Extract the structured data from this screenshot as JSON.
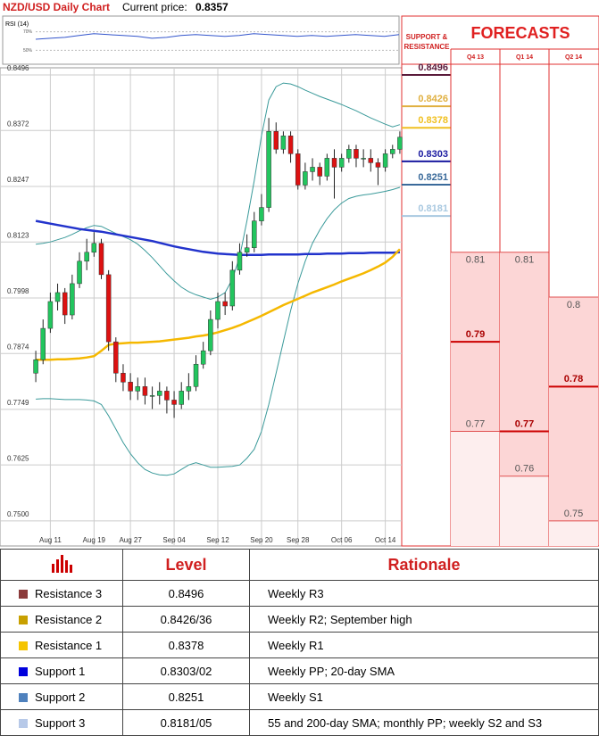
{
  "header": {
    "title": "NZD/USD Daily Chart",
    "price_label": "Current price:",
    "price": 0.8357
  },
  "chart_data": {
    "type": "candlestick",
    "categories": [
      null,
      null,
      "Aug 11",
      null,
      null,
      null,
      null,
      null,
      "Aug 19",
      null,
      null,
      null,
      null,
      "Aug 27",
      null,
      null,
      null,
      null,
      null,
      "Sep 04",
      null,
      null,
      null,
      null,
      null,
      "Sep 12",
      null,
      null,
      null,
      null,
      null,
      "Sep 20",
      null,
      null,
      null,
      null,
      "Sep 28",
      null,
      null,
      null,
      null,
      null,
      "Oct 06",
      null,
      null,
      null,
      null,
      null,
      "Oct 14",
      null,
      null
    ],
    "open": [
      0.783,
      0.786,
      0.793,
      0.799,
      0.801,
      0.796,
      0.803,
      0.808,
      0.81,
      0.812,
      0.805,
      0.79,
      0.783,
      0.781,
      0.779,
      0.78,
      0.778,
      0.778,
      0.779,
      0.777,
      0.776,
      0.779,
      0.78,
      0.785,
      0.788,
      0.795,
      0.799,
      0.798,
      0.806,
      0.81,
      0.811,
      0.817,
      0.82,
      0.837,
      0.833,
      0.836,
      0.832,
      0.825,
      0.828,
      0.829,
      0.827,
      0.831,
      0.829,
      0.831,
      0.833,
      0.831,
      0.831,
      0.83,
      0.829,
      0.832,
      0.833
    ],
    "high": [
      0.788,
      0.795,
      0.801,
      0.803,
      0.802,
      0.805,
      0.81,
      0.813,
      0.8145,
      0.813,
      0.806,
      0.791,
      0.785,
      0.783,
      0.782,
      0.782,
      0.78,
      0.781,
      0.78,
      0.779,
      0.781,
      0.783,
      0.787,
      0.79,
      0.797,
      0.801,
      0.801,
      0.808,
      0.812,
      0.814,
      0.819,
      0.823,
      0.84,
      0.839,
      0.837,
      0.837,
      0.833,
      0.83,
      0.831,
      0.83,
      0.832,
      0.833,
      0.832,
      0.834,
      0.834,
      0.833,
      0.833,
      0.831,
      0.833,
      0.834,
      0.837
    ],
    "low": [
      0.781,
      0.785,
      0.792,
      0.797,
      0.794,
      0.795,
      0.802,
      0.806,
      0.809,
      0.804,
      0.788,
      0.781,
      0.779,
      0.777,
      0.777,
      0.776,
      0.775,
      0.776,
      0.774,
      0.773,
      0.775,
      0.777,
      0.779,
      0.784,
      0.787,
      0.793,
      0.796,
      0.797,
      0.805,
      0.809,
      0.81,
      0.816,
      0.819,
      0.832,
      0.832,
      0.83,
      0.824,
      0.824,
      0.826,
      0.825,
      0.826,
      0.822,
      0.828,
      0.83,
      0.829,
      0.829,
      0.828,
      0.825,
      0.828,
      0.831,
      0.832
    ],
    "close": [
      0.786,
      0.793,
      0.799,
      0.801,
      0.796,
      0.803,
      0.808,
      0.81,
      0.812,
      0.805,
      0.79,
      0.783,
      0.781,
      0.779,
      0.78,
      0.778,
      0.778,
      0.779,
      0.777,
      0.776,
      0.779,
      0.78,
      0.785,
      0.788,
      0.795,
      0.799,
      0.798,
      0.806,
      0.81,
      0.811,
      0.817,
      0.82,
      0.837,
      0.833,
      0.836,
      0.832,
      0.825,
      0.828,
      0.829,
      0.827,
      0.831,
      0.829,
      0.831,
      0.833,
      0.831,
      0.831,
      0.83,
      0.829,
      0.832,
      0.833,
      0.8357
    ],
    "series": [
      {
        "color": "#3a9a9a",
        "values": [
          0.8118,
          0.812,
          0.8123,
          0.8128,
          0.8133,
          0.814,
          0.8148,
          0.8155,
          0.816,
          0.8158,
          0.815,
          0.8142,
          0.8135,
          0.8128,
          0.8118,
          0.8104,
          0.8088,
          0.807,
          0.8052,
          0.8036,
          0.8022,
          0.8012,
          0.8005,
          0.8,
          0.7995,
          0.8,
          0.801,
          0.804,
          0.809,
          0.817,
          0.826,
          0.836,
          0.844,
          0.847,
          0.8478,
          0.8476,
          0.847,
          0.8462,
          0.8455,
          0.8448,
          0.8442,
          0.8436,
          0.843,
          0.8423,
          0.8416,
          0.8408,
          0.84,
          0.8393,
          0.8386,
          0.838,
          0.8385
        ]
      },
      {
        "color": "#3a9a9a",
        "values": [
          0.7772,
          0.7773,
          0.7773,
          0.7772,
          0.7771,
          0.7771,
          0.7771,
          0.777,
          0.7768,
          0.776,
          0.7735,
          0.7705,
          0.7675,
          0.765,
          0.763,
          0.7615,
          0.7607,
          0.7603,
          0.7602,
          0.7605,
          0.7615,
          0.7625,
          0.763,
          0.7625,
          0.762,
          0.762,
          0.7621,
          0.7622,
          0.7625,
          0.764,
          0.766,
          0.77,
          0.776,
          0.783,
          0.79,
          0.797,
          0.803,
          0.808,
          0.812,
          0.815,
          0.8175,
          0.8195,
          0.821,
          0.822,
          0.8225,
          0.8228,
          0.823,
          0.8233,
          0.8236,
          0.824,
          0.8245
        ]
      },
      {
        "color": "#2233cc",
        "values": [
          0.817,
          0.8167,
          0.8164,
          0.8161,
          0.8158,
          0.8155,
          0.8152,
          0.815,
          0.8148,
          0.8146,
          0.8143,
          0.814,
          0.8137,
          0.8134,
          0.8131,
          0.8128,
          0.8125,
          0.8121,
          0.8117,
          0.8113,
          0.811,
          0.8107,
          0.8104,
          0.8101,
          0.8099,
          0.8097,
          0.8096,
          0.8095,
          0.8094,
          0.8094,
          0.8094,
          0.8094,
          0.8095,
          0.8095,
          0.8095,
          0.8095,
          0.8095,
          0.8096,
          0.8096,
          0.8096,
          0.8097,
          0.8097,
          0.8097,
          0.8098,
          0.8098,
          0.8098,
          0.8099,
          0.8099,
          0.8099,
          0.8099,
          0.81
        ]
      },
      {
        "color": "#f5b800",
        "values": [
          0.786,
          0.786,
          0.786,
          0.7861,
          0.7861,
          0.7862,
          0.7863,
          0.7865,
          0.7868,
          0.788,
          0.7893,
          0.7896,
          0.7897,
          0.7898,
          0.7898,
          0.7899,
          0.79,
          0.7901,
          0.7903,
          0.7905,
          0.7907,
          0.7909,
          0.7912,
          0.7914,
          0.7917,
          0.7921,
          0.7926,
          0.7931,
          0.7937,
          0.7944,
          0.7951,
          0.7958,
          0.7966,
          0.7974,
          0.7982,
          0.7989,
          0.7996,
          0.8003,
          0.801,
          0.8016,
          0.8022,
          0.8028,
          0.8035,
          0.8041,
          0.8047,
          0.8053,
          0.806,
          0.8068,
          0.8077,
          0.809,
          0.8107
        ]
      }
    ],
    "up_color": "#22c55e",
    "down_color": "#dd1111",
    "ylim": [
      0.7444,
      0.8512
    ],
    "yticks": [
      0.8496,
      0.8372,
      0.8247,
      0.8123,
      0.7998,
      0.7874,
      0.7749,
      0.7625,
      {
        "value": 0.75,
        "label": "0.7500"
      }
    ],
    "grid": true,
    "rsi": {
      "title": "RSI (14)",
      "color": "#3355cc",
      "ylim": [
        35,
        87
      ],
      "yticks": [
        {
          "value": 70,
          "label": "70%"
        },
        {
          "value": 50,
          "label": "50%"
        }
      ],
      "values": [
        62,
        63,
        64,
        66,
        68,
        67,
        66,
        65,
        63,
        64,
        66,
        67,
        66,
        65,
        66,
        68,
        67,
        66,
        65,
        66,
        65,
        66,
        67,
        66,
        65,
        67
      ]
    }
  },
  "support_resistance": {
    "title": "SUPPORT & RESISTANCE",
    "levels": [
      {
        "value": 0.8496,
        "color": "#5a1a3a"
      },
      {
        "value": 0.8426,
        "color": "#e0b040"
      },
      {
        "value": 0.8378,
        "color": "#f0c020"
      },
      {
        "value": 0.8303,
        "color": "#1a1aa0"
      },
      {
        "value": 0.8251,
        "color": "#3a6a9a"
      },
      {
        "value": 0.8181,
        "color": "#a8c8e0"
      }
    ]
  },
  "forecasts": {
    "title": "FORECASTS",
    "periods": [
      {
        "label": "Q4 13",
        "high": 0.81,
        "median": 0.79,
        "low": 0.77
      },
      {
        "label": "Q1 14",
        "high": 0.81,
        "median": 0.77,
        "low": 0.76
      },
      {
        "label": "Q2 14",
        "high": 0.8,
        "median": 0.78,
        "low": 0.75
      }
    ]
  },
  "table": {
    "headers": [
      "Level",
      "Rationale"
    ],
    "rows": [
      {
        "name": "Resistance 3",
        "color": "#8b3a3a",
        "level": "0.8496",
        "rationale": "Weekly R3"
      },
      {
        "name": "Resistance 2",
        "color": "#c8a000",
        "level": "0.8426/36",
        "rationale": "Weekly R2; September high"
      },
      {
        "name": "Resistance 1",
        "color": "#f5c400",
        "level": "0.8378",
        "rationale": "Weekly R1"
      },
      {
        "name": "Support 1",
        "color": "#0000dd",
        "level": "0.8303/02",
        "rationale": "Weekly PP; 20-day SMA"
      },
      {
        "name": "Support 2",
        "color": "#4f81bd",
        "level": "0.8251",
        "rationale": "Weekly S1"
      },
      {
        "name": "Support 3",
        "color": "#b7c9e8",
        "level": "0.8181/05",
        "rationale": "55 and 200-day SMA; monthly PP; weekly S2 and S3"
      }
    ]
  }
}
